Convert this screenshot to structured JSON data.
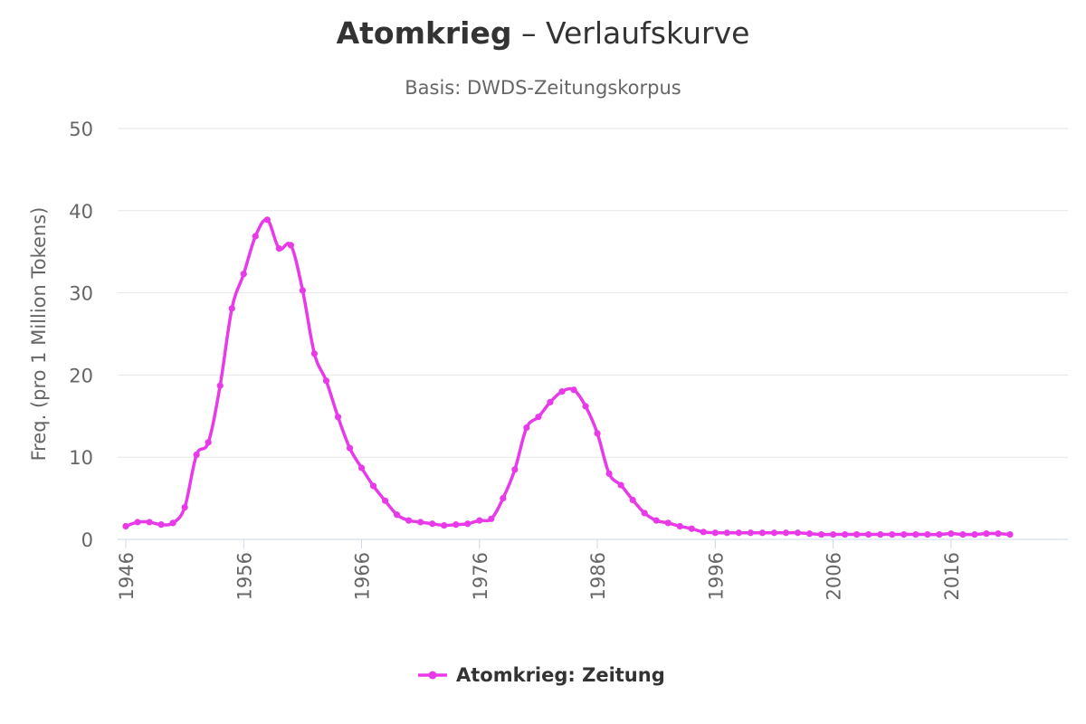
{
  "chart_data": {
    "type": "line",
    "title_bold": "Atomkrieg",
    "title_rest": " – Verlaufskurve",
    "subtitle": "Basis: DWDS-Zeitungskorpus",
    "xlabel": "",
    "ylabel": "Freq. (pro 1 Million Tokens)",
    "xlim": [
      1946,
      2021
    ],
    "ylim": [
      0,
      50
    ],
    "xticks": [
      1946,
      1956,
      1966,
      1976,
      1986,
      1996,
      2006,
      2016
    ],
    "yticks": [
      0,
      10,
      20,
      30,
      40,
      50
    ],
    "grid": true,
    "legend_position": "bottom",
    "series": [
      {
        "name": "Atomkrieg: Zeitung",
        "color": "#e83ae8",
        "x": [
          1946,
          1947,
          1948,
          1949,
          1950,
          1951,
          1952,
          1953,
          1954,
          1955,
          1956,
          1957,
          1958,
          1959,
          1960,
          1961,
          1962,
          1963,
          1964,
          1965,
          1966,
          1967,
          1968,
          1969,
          1970,
          1971,
          1972,
          1973,
          1974,
          1975,
          1976,
          1977,
          1978,
          1979,
          1980,
          1981,
          1982,
          1983,
          1984,
          1985,
          1986,
          1987,
          1988,
          1989,
          1990,
          1991,
          1992,
          1993,
          1994,
          1995,
          1996,
          1997,
          1998,
          1999,
          2000,
          2001,
          2002,
          2003,
          2004,
          2005,
          2006,
          2007,
          2008,
          2009,
          2010,
          2011,
          2012,
          2013,
          2014,
          2015,
          2016,
          2017,
          2018,
          2019,
          2020,
          2021
        ],
        "values": [
          1.6,
          2.1,
          2.1,
          1.8,
          2.0,
          3.9,
          10.3,
          11.8,
          18.7,
          28.1,
          32.3,
          36.9,
          38.9,
          35.4,
          35.8,
          30.3,
          22.6,
          19.3,
          14.9,
          11.1,
          8.7,
          6.5,
          4.7,
          3.0,
          2.3,
          2.1,
          1.9,
          1.7,
          1.8,
          1.9,
          2.3,
          2.5,
          5.0,
          8.5,
          13.6,
          14.9,
          16.7,
          18.0,
          18.2,
          16.2,
          12.9,
          8.0,
          6.6,
          4.8,
          3.2,
          2.3,
          2.0,
          1.6,
          1.3,
          0.9,
          0.8,
          0.8,
          0.8,
          0.8,
          0.8,
          0.8,
          0.8,
          0.8,
          0.7,
          0.6,
          0.6,
          0.6,
          0.6,
          0.6,
          0.6,
          0.6,
          0.6,
          0.6,
          0.6,
          0.6,
          0.7,
          0.6,
          0.6,
          0.7,
          0.7,
          0.6
        ]
      }
    ]
  }
}
